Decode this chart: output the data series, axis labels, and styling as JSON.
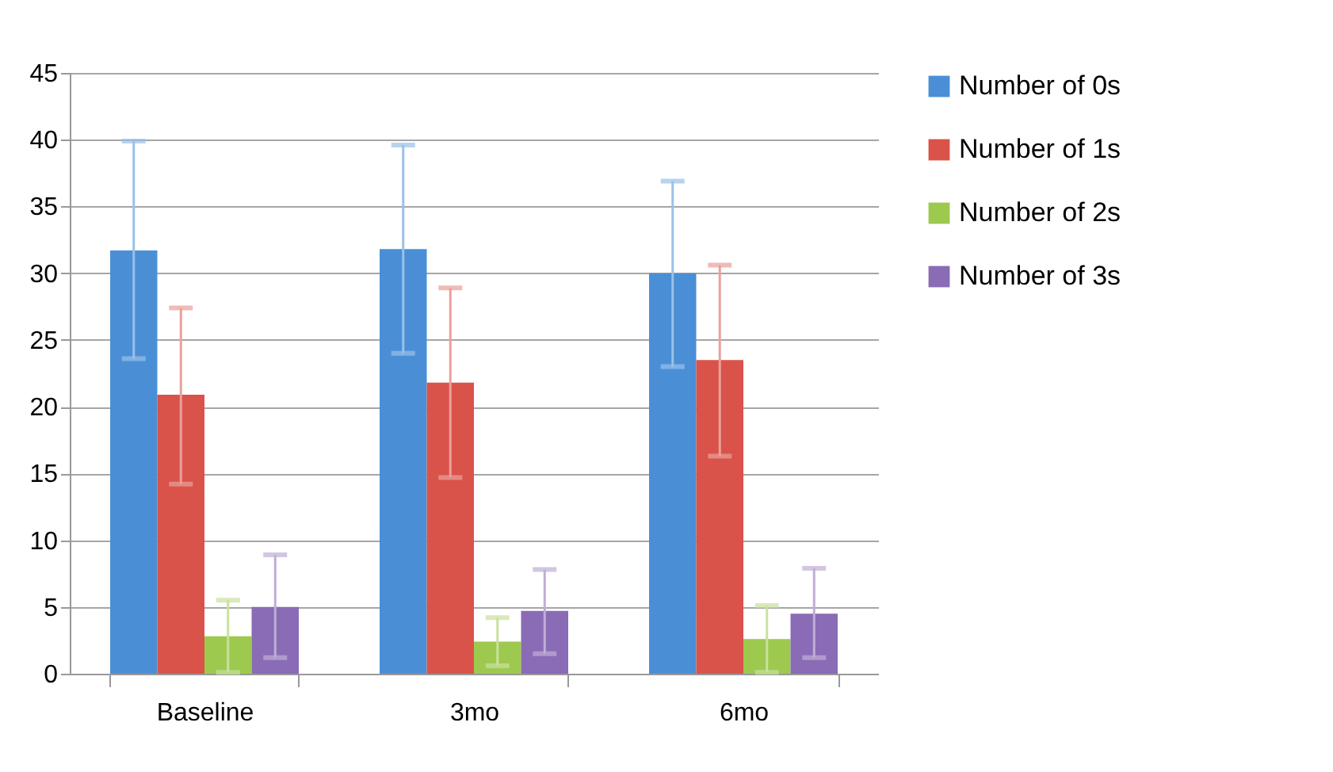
{
  "chart_data": {
    "type": "bar",
    "categories": [
      "Baseline",
      "3mo",
      "6mo"
    ],
    "series": [
      {
        "name": "Number of 0s",
        "color": "#4a8fd6",
        "values": [
          31.7,
          31.8,
          30.0
        ],
        "errors": [
          [
            23.6,
            39.9
          ],
          [
            24.0,
            39.6
          ],
          [
            23.0,
            36.9
          ]
        ]
      },
      {
        "name": "Number of 1s",
        "color": "#d9534a",
        "values": [
          20.9,
          21.8,
          23.5
        ],
        "errors": [
          [
            14.2,
            27.4
          ],
          [
            14.7,
            28.9
          ],
          [
            16.3,
            30.6
          ]
        ]
      },
      {
        "name": "Number of 2s",
        "color": "#9dc94f",
        "values": [
          2.8,
          2.4,
          2.6
        ],
        "errors": [
          [
            0.1,
            5.5
          ],
          [
            0.6,
            4.2
          ],
          [
            0.1,
            5.1
          ]
        ]
      },
      {
        "name": "Number of 3s",
        "color": "#8a6bb5",
        "values": [
          5.0,
          4.7,
          4.5
        ],
        "errors": [
          [
            1.2,
            8.9
          ],
          [
            1.5,
            7.8
          ],
          [
            1.2,
            7.9
          ]
        ]
      }
    ],
    "ylim": [
      0,
      45
    ],
    "yticks": [
      0,
      5,
      10,
      15,
      20,
      25,
      30,
      35,
      40,
      45
    ],
    "grid": "y",
    "legend": "right"
  }
}
